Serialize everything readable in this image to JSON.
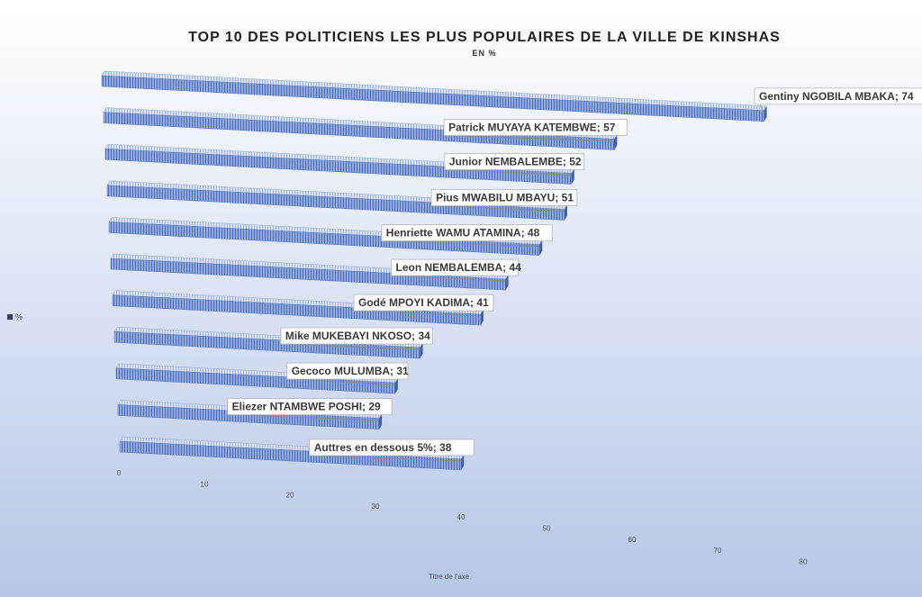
{
  "chart_data": {
    "type": "bar",
    "orientation": "horizontal",
    "title": "TOP 10 DES POLITICIENS LES PLUS POPULAIRES DE LA VILLE DE KINSHAS",
    "subtitle": "EN %",
    "xlabel": "Titre de l'axe",
    "ylabel": "",
    "xlim": [
      0,
      80
    ],
    "x_ticks": [
      0,
      10,
      20,
      30,
      40,
      50,
      60,
      70,
      80
    ],
    "legend": "%",
    "legend_position": "left",
    "categories": [
      "Gentiny  NGOBILA MBAKA",
      "Patrick  MUYAYA KATEMBWE",
      "Junior NEMBALEMBE",
      "Pius MWABILU MBAYU",
      "Henriette WAMU ATAMINA",
      "Leon NEMBALEMBA",
      "Godé MPOYI KADIMA",
      "Mike MUKEBAYI NKOSO",
      "Gecoco MULUMBA",
      "Eliezer NTAMBWE POSHI",
      "Auttres en dessous 5%"
    ],
    "values": [
      74,
      57,
      52,
      51,
      48,
      44,
      41,
      34,
      31,
      29,
      38
    ],
    "data_labels": [
      "Gentiny  NGOBILA MBAKA; 74",
      "Patrick  MUYAYA KATEMBWE; 57",
      "Junior NEMBALEMBE; 52",
      "Pius MWABILU MBAYU; 51",
      "Henriette WAMU ATAMINA; 48",
      "Leon NEMBALEMBA; 44",
      "Godé MPOYI KADIMA; 41",
      "Mike MUKEBAYI NKOSO; 34",
      "Gecoco MULUMBA; 31",
      "Eliezer NTAMBWE POSHI; 29",
      "Auttres en dessous 5%; 38"
    ],
    "colors": {
      "bar": "#7f9bd6",
      "bar_dark": "#4d6cb3",
      "bar_light": "#c9d6f0"
    }
  }
}
